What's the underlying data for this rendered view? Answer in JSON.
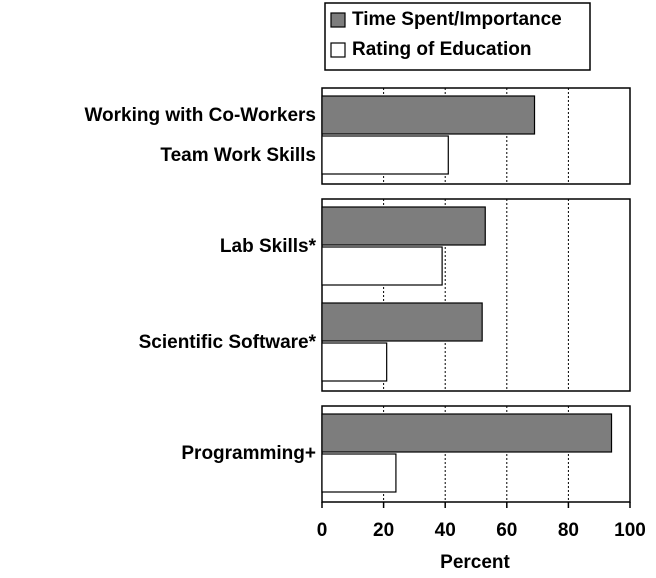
{
  "chart_data": {
    "type": "bar",
    "orientation": "horizontal",
    "categories": [
      "Working with Co-Workers",
      "Lab Skills*",
      "Scientific Software*",
      "Programming+"
    ],
    "second_labels": [
      "Team Work Skills",
      null,
      null,
      null
    ],
    "panels": [
      1,
      2,
      1
    ],
    "series": [
      {
        "name": "Time Spent/Importance",
        "color": "#7d7d7d",
        "values": [
          69,
          53,
          52,
          94
        ]
      },
      {
        "name": "Rating of Education",
        "color": "#ffffff",
        "values": [
          41,
          39,
          21,
          24
        ]
      }
    ],
    "xlim": [
      0,
      100
    ],
    "xticks": [
      0,
      20,
      40,
      60,
      80,
      100
    ],
    "xlabel": "Percent",
    "grid": true,
    "legend": "top"
  }
}
